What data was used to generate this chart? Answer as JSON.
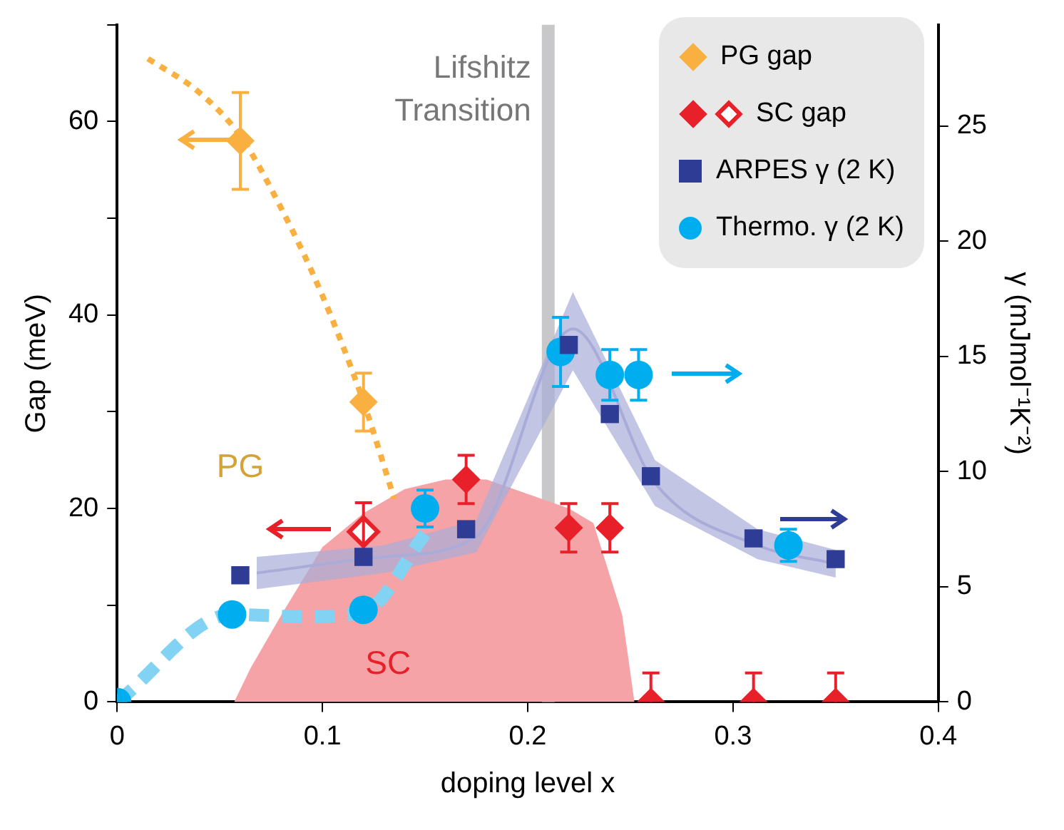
{
  "chart_data": {
    "type": "scatter",
    "xlabel": "doping level x",
    "ylabel": "Gap (meV)",
    "y2label": "γ (mJmol⁻¹K⁻²)",
    "xlim": [
      0,
      0.4
    ],
    "xticks": [
      0,
      0.1,
      0.2,
      0.3,
      0.4
    ],
    "ylim": [
      0,
      70
    ],
    "yticks": [
      0,
      {
        "value": 10,
        "label": null
      },
      20,
      {
        "value": 30,
        "label": null
      },
      40,
      {
        "value": 50,
        "label": null
      },
      60,
      {
        "value": 70,
        "label": null
      }
    ],
    "y2lim": [
      0,
      29.4
    ],
    "y2ticks": [
      0,
      5,
      10,
      15,
      20,
      25
    ],
    "grid": false,
    "legend": "top right",
    "ref_lines": [
      {
        "axis": "x",
        "value": 0.21,
        "label": "Lifshitz\nTransition",
        "color": "#c8c8ca"
      }
    ],
    "annotations": [
      "PG",
      "SC"
    ],
    "series": [
      {
        "type": "area",
        "color": "#f5a3a6",
        "x": [
          0.057,
          0.065,
          0.08,
          0.1,
          0.12,
          0.14,
          0.16,
          0.18,
          0.2,
          0.22,
          0.232,
          0.246,
          0.252
        ],
        "values": [
          0,
          3.5,
          9,
          16,
          19.5,
          22,
          23,
          23,
          21.5,
          20,
          18.5,
          9,
          0
        ],
        "marker": "none"
      },
      {
        "type": "line",
        "color": "#a9acd9",
        "axis": "y2",
        "x": [
          0.068,
          0.13,
          0.175,
          0.222,
          0.262,
          0.312,
          0.35
        ],
        "values": [
          5.6,
          6.3,
          7.2,
          16.2,
          9.5,
          6.8,
          6.0
        ],
        "lower": [
          4.9,
          5.6,
          6.5,
          14.4,
          8.5,
          6.2,
          5.4
        ],
        "upper": [
          6.3,
          6.8,
          7.9,
          17.8,
          10.5,
          7.5,
          6.6
        ],
        "marker": "none"
      },
      {
        "type": "line",
        "color": "#f9b040",
        "line_style": "dotted",
        "x": [
          0.015,
          0.04,
          0.06,
          0.08,
          0.1,
          0.12,
          0.135
        ],
        "values": [
          66.5,
          63,
          58.5,
          51,
          42,
          31,
          21
        ],
        "marker": "none"
      },
      {
        "type": "line",
        "color": "#82d3f3",
        "line_style": "dashed",
        "axis": "y2",
        "x": [
          0,
          0.056,
          0.09,
          0.12,
          0.15
        ],
        "values": [
          0,
          3.8,
          3.7,
          3.9,
          7.3
        ],
        "marker": "none"
      },
      {
        "name": "PG gap",
        "color": "#f9b040",
        "marker": "diamond",
        "x": [
          0.06,
          0.12
        ],
        "values": [
          58,
          31
        ],
        "errors": [
          5,
          3
        ]
      },
      {
        "name": "SC gap",
        "color": "#e8202a",
        "marker": "diamond",
        "x": [
          0.17,
          0.22,
          0.24,
          0.26,
          0.31,
          0.35
        ],
        "values": [
          23,
          18,
          18,
          0,
          0,
          0
        ],
        "errors": [
          2.5,
          2.5,
          2.5,
          [
            0,
            3
          ],
          [
            0,
            3
          ],
          [
            0,
            3
          ]
        ]
      },
      {
        "color": "#e8202a",
        "marker": "diamond",
        "x": [
          0.12
        ],
        "values": [
          17.6
        ],
        "errors": [
          3
        ]
      },
      {
        "name": "ARPES γ (2 K)",
        "color": "#2e3c96",
        "marker": "square",
        "axis": "y2",
        "x": [
          0.06,
          0.12,
          0.17,
          0.22,
          0.24,
          0.26,
          0.31,
          0.35
        ],
        "values": [
          5.5,
          6.3,
          7.5,
          15.5,
          12.5,
          9.8,
          7.1,
          6.2
        ]
      },
      {
        "name": "Thermo. γ (2 K)",
        "color": "#00aeef",
        "marker": "circle",
        "axis": "y2",
        "x": [
          0,
          0.056,
          0.12,
          0.15,
          0.216,
          0.24,
          0.254,
          0.327
        ],
        "values": [
          0,
          3.8,
          4.0,
          8.4,
          15.2,
          14.2,
          14.2,
          6.8
        ],
        "errors": [
          null,
          null,
          null,
          0.8,
          1.5,
          1.1,
          1.1,
          0.7
        ]
      }
    ]
  }
}
